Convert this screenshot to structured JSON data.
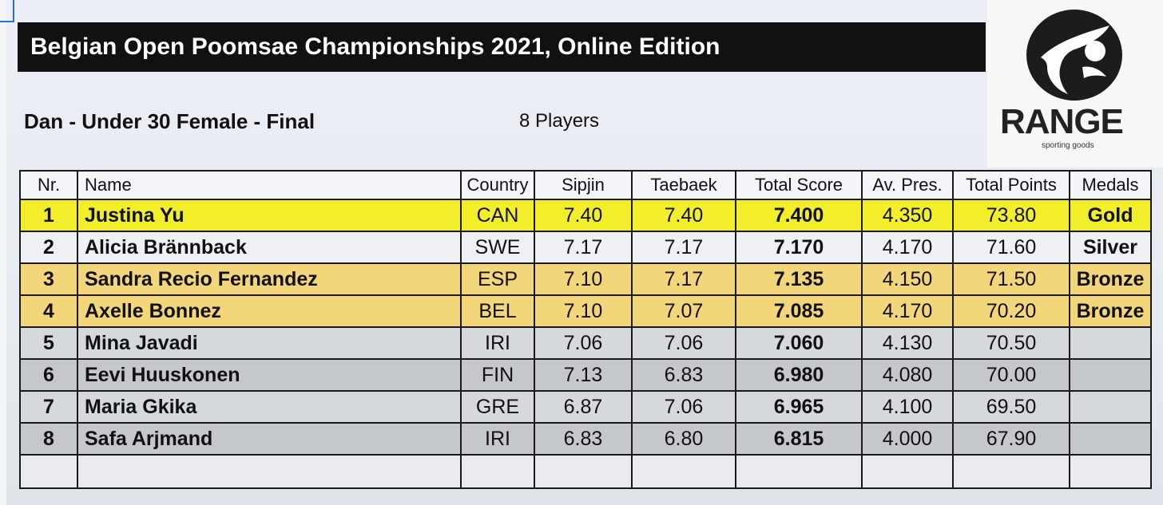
{
  "header": {
    "title": "Belgian Open Poomsae Championships 2021, Online Edition",
    "event": "Dan - Under 30 Female - Final",
    "players": "8 Players"
  },
  "logo": {
    "brand": "RANGE",
    "tagline": "sporting goods"
  },
  "table": {
    "columns": [
      "Nr.",
      "Name",
      "Country",
      "Sipjin",
      "Taebaek",
      "Total Score",
      "Av. Pres.",
      "Total Points",
      "Medals"
    ],
    "rows": [
      [
        "1",
        "Justina Yu",
        "CAN",
        "7.40",
        "7.40",
        "7.400",
        "4.350",
        "73.80",
        "Gold"
      ],
      [
        "2",
        "Alicia Brännback",
        "SWE",
        "7.17",
        "7.17",
        "7.170",
        "4.170",
        "71.60",
        "Silver"
      ],
      [
        "3",
        "Sandra Recio Fernandez",
        "ESP",
        "7.10",
        "7.17",
        "7.135",
        "4.150",
        "71.50",
        "Bronze"
      ],
      [
        "4",
        "Axelle Bonnez",
        "BEL",
        "7.10",
        "7.07",
        "7.085",
        "4.170",
        "70.20",
        "Bronze"
      ],
      [
        "5",
        "Mina Javadi",
        "IRI",
        "7.06",
        "7.06",
        "7.060",
        "4.130",
        "70.50",
        ""
      ],
      [
        "6",
        "Eevi Huuskonen",
        "FIN",
        "7.13",
        "6.83",
        "6.980",
        "4.080",
        "70.00",
        ""
      ],
      [
        "7",
        "Maria Gkika",
        "GRE",
        "6.87",
        "7.06",
        "6.965",
        "4.100",
        "69.50",
        ""
      ],
      [
        "8",
        "Safa Arjmand",
        "IRI",
        "6.83",
        "6.80",
        "6.815",
        "4.000",
        "67.90",
        ""
      ]
    ]
  },
  "colors": {
    "gold_row": "#f2ef2a",
    "silver_row": "#eef0f3",
    "bronze_row": "#f3d679",
    "plain_row": "#d5d8dd",
    "title_bar": "#111111"
  }
}
